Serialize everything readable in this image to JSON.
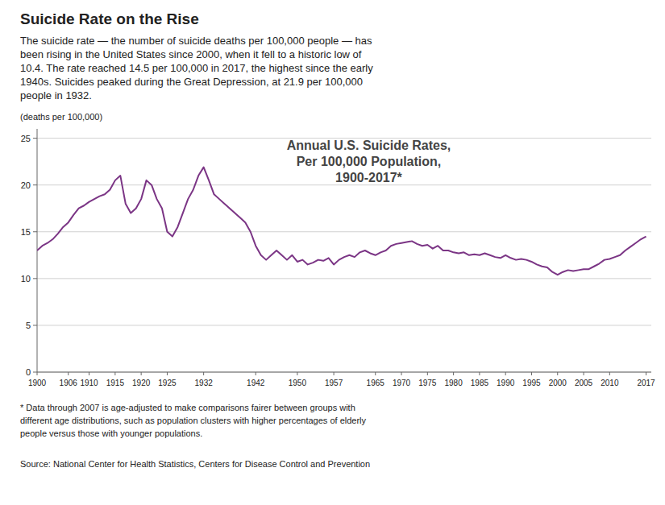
{
  "chart_data": {
    "type": "line",
    "title": "Suicide Rate on the Rise",
    "subtitle": [
      "The suicide rate — the number of suicide deaths per 100,000 people — has",
      "been rising in the United States since 2000, when it fell to a historic low of",
      "10.4. The rate reached 14.5 per 100,000 in 2017, the highest since the early",
      "1940s. Suicides peaked during the Great Depression, at 21.9 per 100,000",
      "people in 1932."
    ],
    "annotation": [
      "Annual U.S. Suicide Rates,",
      "Per 100,000 Population,",
      "1900-2017*"
    ],
    "ylabel": "(deaths per 100,000)",
    "footnotes": [
      "* Data through 2007 is age-adjusted to make comparisons fairer between groups with",
      "different age distributions, such as population clusters with higher percentages of elderly",
      "people versus those with younger populations."
    ],
    "source": "Source: National Center for Health Statistics, Centers for Disease Control and Prevention",
    "color": "#7B3585",
    "grid": true,
    "xlim": [
      1900,
      2018
    ],
    "xticks": [
      1900,
      1906,
      1910,
      1915,
      1920,
      1925,
      1932,
      1942,
      1950,
      1957,
      1965,
      1970,
      1975,
      1980,
      1985,
      1990,
      1995,
      2000,
      2005,
      2010,
      2017
    ],
    "ylim": [
      0,
      26
    ],
    "yticks": [
      0,
      5,
      10,
      15,
      20,
      25
    ],
    "x": [
      1900,
      1901,
      1902,
      1903,
      1904,
      1905,
      1906,
      1907,
      1908,
      1909,
      1910,
      1911,
      1912,
      1913,
      1914,
      1915,
      1916,
      1917,
      1918,
      1919,
      1920,
      1921,
      1922,
      1923,
      1924,
      1925,
      1926,
      1927,
      1928,
      1929,
      1930,
      1931,
      1932,
      1933,
      1934,
      1935,
      1936,
      1937,
      1938,
      1939,
      1940,
      1941,
      1942,
      1943,
      1944,
      1945,
      1946,
      1947,
      1948,
      1949,
      1950,
      1951,
      1952,
      1953,
      1954,
      1955,
      1956,
      1957,
      1958,
      1959,
      1960,
      1961,
      1962,
      1963,
      1964,
      1965,
      1966,
      1967,
      1968,
      1969,
      1970,
      1971,
      1972,
      1973,
      1974,
      1975,
      1976,
      1977,
      1978,
      1979,
      1980,
      1981,
      1982,
      1983,
      1984,
      1985,
      1986,
      1987,
      1988,
      1989,
      1990,
      1991,
      1992,
      1993,
      1994,
      1995,
      1996,
      1997,
      1998,
      1999,
      2000,
      2001,
      2002,
      2003,
      2004,
      2005,
      2006,
      2007,
      2008,
      2009,
      2010,
      2011,
      2012,
      2013,
      2014,
      2015,
      2016,
      2017
    ],
    "values": [
      13.0,
      13.5,
      13.8,
      14.2,
      14.8,
      15.5,
      16.0,
      16.8,
      17.5,
      17.8,
      18.2,
      18.5,
      18.8,
      19.0,
      19.5,
      20.5,
      21.0,
      18.0,
      17.0,
      17.5,
      18.5,
      20.5,
      20.0,
      18.5,
      17.5,
      15.0,
      14.5,
      15.5,
      17.0,
      18.5,
      19.5,
      21.0,
      21.9,
      20.5,
      19.0,
      18.5,
      18.0,
      17.5,
      17.0,
      16.5,
      16.0,
      15.0,
      13.5,
      12.5,
      12.0,
      12.5,
      13.0,
      12.5,
      12.0,
      12.5,
      11.8,
      12.0,
      11.5,
      11.7,
      12.0,
      11.9,
      12.2,
      11.5,
      12.0,
      12.3,
      12.5,
      12.3,
      12.8,
      13.0,
      12.7,
      12.5,
      12.8,
      13.0,
      13.5,
      13.7,
      13.8,
      13.9,
      14.0,
      13.7,
      13.5,
      13.6,
      13.2,
      13.5,
      13.0,
      13.0,
      12.8,
      12.7,
      12.8,
      12.5,
      12.6,
      12.5,
      12.7,
      12.5,
      12.3,
      12.2,
      12.5,
      12.2,
      12.0,
      12.1,
      12.0,
      11.8,
      11.5,
      11.3,
      11.2,
      10.7,
      10.4,
      10.7,
      10.9,
      10.8,
      10.9,
      11.0,
      11.0,
      11.3,
      11.6,
      12.0,
      12.1,
      12.3,
      12.5,
      13.0,
      13.4,
      13.8,
      14.2,
      14.5
    ]
  }
}
